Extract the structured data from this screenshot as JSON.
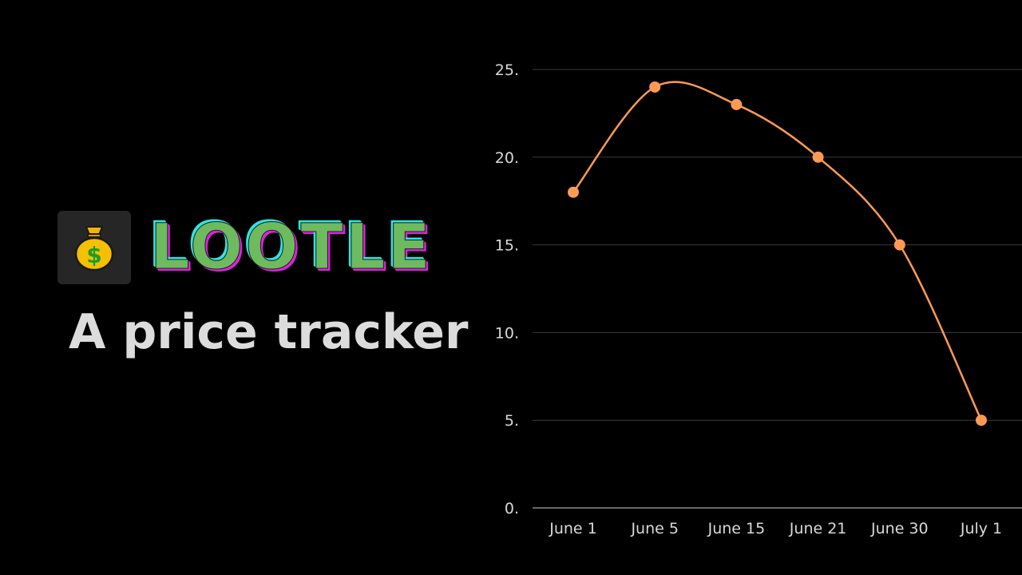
{
  "brand": {
    "name": "LOOTLE",
    "tagline": "A price tracker",
    "icon": "money-bag-icon",
    "colors": {
      "name_fill": "#6dbb5e",
      "name_shadow_a": "#2ee6e6",
      "name_shadow_b": "#e020e0",
      "tagline": "#dcdcdc",
      "icon_box": "#262626"
    }
  },
  "chart_data": {
    "type": "line",
    "categories": [
      "June 1",
      "June 5",
      "June 15",
      "June 21",
      "June 30",
      "July 1"
    ],
    "series": [
      {
        "values": [
          18,
          24,
          23,
          20,
          15,
          5
        ],
        "color": "#ff9a55"
      }
    ],
    "y_ticks": [
      "0.",
      "5.",
      "10.",
      "15.",
      "20.",
      "25."
    ],
    "y_tick_values": [
      0,
      5,
      10,
      15,
      20,
      25
    ],
    "ylim": [
      0,
      25
    ],
    "smooth": true,
    "grid": true,
    "title": "",
    "xlabel": "",
    "ylabel": ""
  }
}
